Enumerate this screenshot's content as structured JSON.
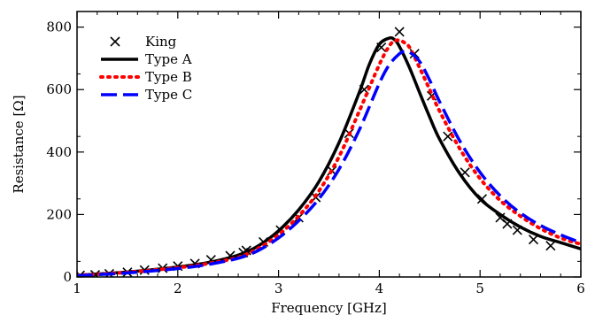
{
  "chart_data": {
    "type": "line",
    "title": "",
    "xlabel": "Frequency [GHz]",
    "ylabel": "Resistance [Ω]",
    "xlim": [
      1,
      6
    ],
    "ylim": [
      0,
      850
    ],
    "xticks": [
      1,
      2,
      3,
      4,
      5,
      6
    ],
    "yticks": [
      0,
      200,
      400,
      600,
      800
    ],
    "xtick_labels": [
      "1",
      "2",
      "3",
      "4",
      "5",
      "6"
    ],
    "ytick_labels": [
      "0",
      "200",
      "400",
      "600",
      "800"
    ],
    "grid": false,
    "legend_position": "top-left",
    "series": [
      {
        "name": "King",
        "style": "markers",
        "marker": "x",
        "color": "#000000",
        "x": [
          1.03,
          1.18,
          1.32,
          1.5,
          1.67,
          1.85,
          2.0,
          2.17,
          2.33,
          2.52,
          2.65,
          2.68,
          2.85,
          3.02,
          3.2,
          3.37,
          3.53,
          3.7,
          3.85,
          4.02,
          4.2,
          4.35,
          4.52,
          4.68,
          4.85,
          5.02,
          5.2,
          5.27,
          5.37,
          5.53,
          5.7
        ],
        "y": [
          5,
          7,
          10,
          15,
          22,
          28,
          35,
          43,
          55,
          68,
          78,
          85,
          112,
          150,
          190,
          255,
          340,
          460,
          600,
          735,
          785,
          715,
          580,
          450,
          335,
          250,
          190,
          170,
          150,
          120,
          100
        ]
      },
      {
        "name": "Type A",
        "style": "solid",
        "color": "#000000",
        "x": [
          1.0,
          1.5,
          2.0,
          2.3,
          2.6,
          2.8,
          3.0,
          3.2,
          3.4,
          3.6,
          3.8,
          3.9,
          4.0,
          4.1,
          4.15,
          4.2,
          4.3,
          4.4,
          4.5,
          4.6,
          4.8,
          5.0,
          5.2,
          5.4,
          5.6,
          5.8,
          6.0
        ],
        "y": [
          5,
          16,
          32,
          46,
          70,
          100,
          148,
          215,
          305,
          430,
          590,
          680,
          745,
          765,
          760,
          738,
          670,
          590,
          512,
          440,
          330,
          250,
          200,
          160,
          130,
          110,
          90
        ]
      },
      {
        "name": "Type B",
        "style": "dotted",
        "color": "#ff0000",
        "x": [
          1.0,
          1.5,
          2.0,
          2.3,
          2.6,
          2.8,
          3.0,
          3.2,
          3.4,
          3.6,
          3.8,
          4.0,
          4.1,
          4.15,
          4.2,
          4.25,
          4.3,
          4.4,
          4.5,
          4.6,
          4.8,
          5.0,
          5.2,
          5.4,
          5.6,
          5.8,
          6.0
        ],
        "y": [
          5,
          15,
          30,
          43,
          63,
          92,
          135,
          195,
          275,
          385,
          530,
          680,
          740,
          755,
          758,
          750,
          735,
          670,
          600,
          530,
          410,
          315,
          245,
          195,
          155,
          125,
          105
        ]
      },
      {
        "name": "Type C",
        "style": "dashed",
        "color": "#0000ff",
        "x": [
          1.0,
          1.5,
          2.0,
          2.3,
          2.6,
          2.8,
          3.0,
          3.2,
          3.4,
          3.6,
          3.8,
          4.0,
          4.1,
          4.2,
          4.25,
          4.3,
          4.4,
          4.5,
          4.6,
          4.8,
          5.0,
          5.2,
          5.4,
          5.6,
          5.8,
          6.0
        ],
        "y": [
          4,
          13,
          27,
          40,
          60,
          85,
          125,
          180,
          250,
          345,
          470,
          620,
          680,
          715,
          722,
          720,
          690,
          630,
          560,
          435,
          335,
          260,
          205,
          165,
          135,
          110
        ]
      }
    ]
  }
}
